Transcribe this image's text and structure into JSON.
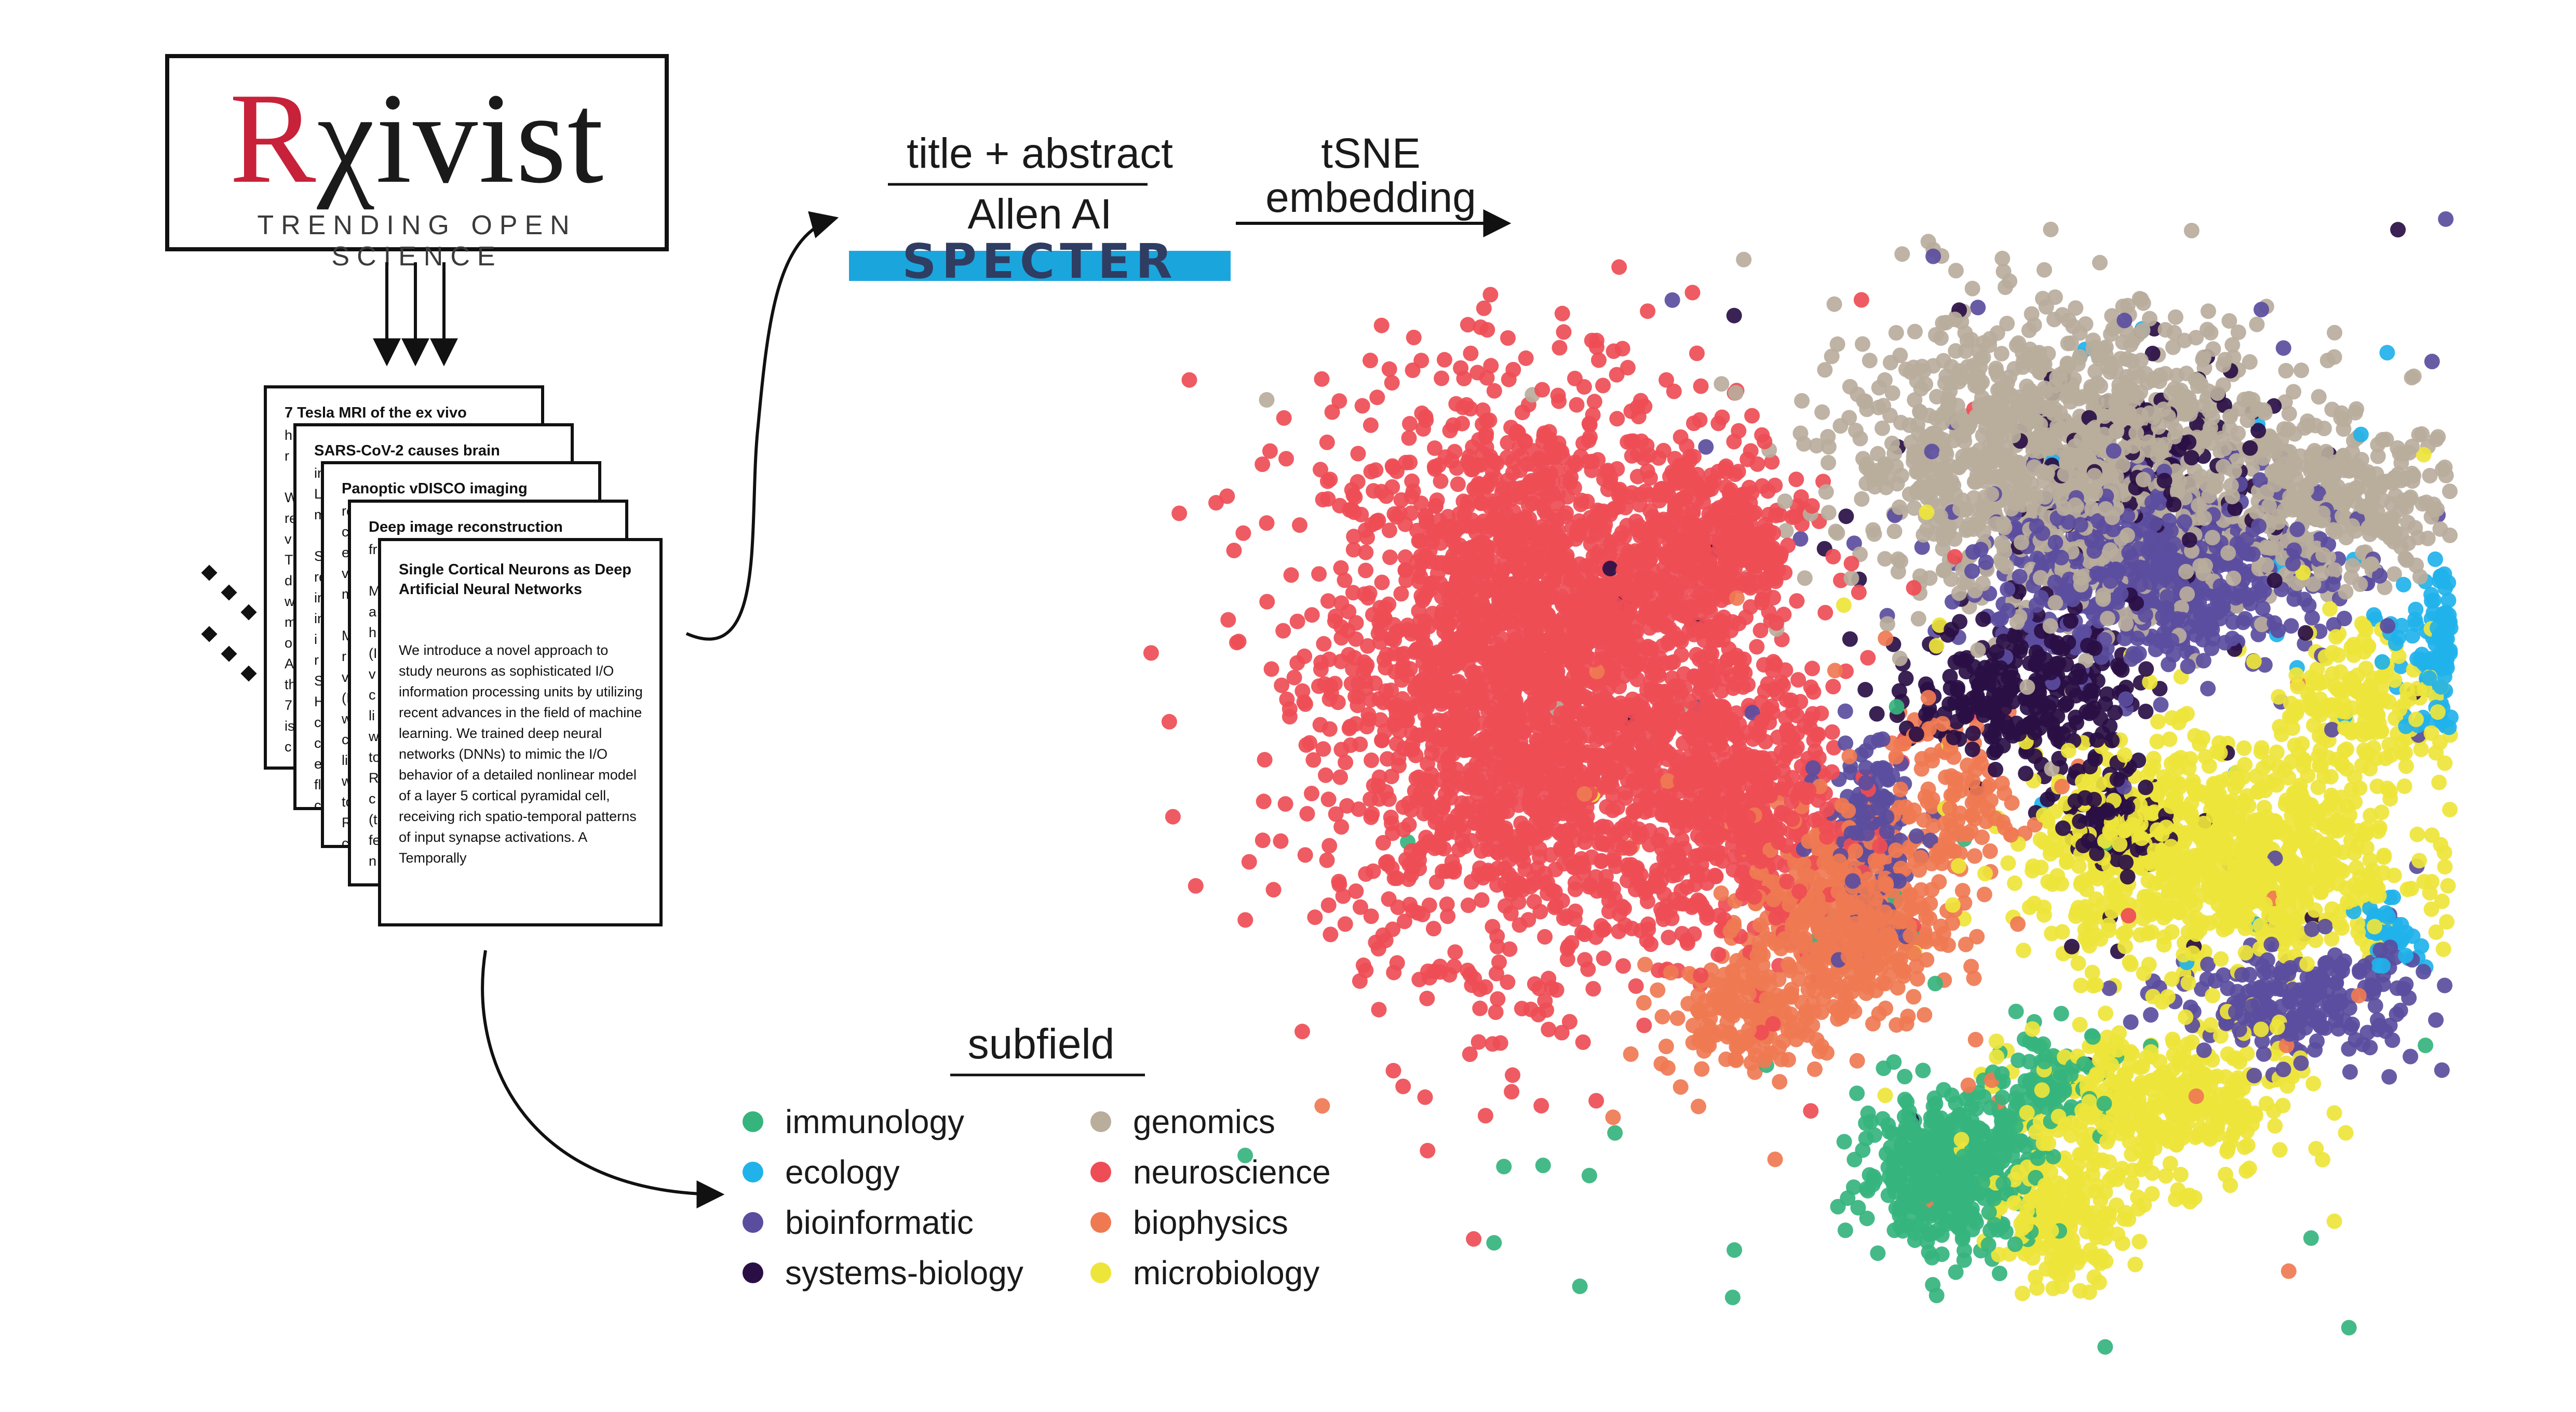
{
  "logo": {
    "wordmark_prefix": "R",
    "wordmark_rest": "χivist",
    "tagline": "TRENDING OPEN SCIENCE"
  },
  "papers": [
    {
      "title": "7 Tesla MRI of the ex vivo",
      "fragments": "h\nr\n\nW\nre\nv\nT\nd\nw\nm\no\nA\nth\n7\nis\nc"
    },
    {
      "title": "SARS-CoV-2 causes brain",
      "fragments": "in\nL\nm\n\nS\nre\nin\nin\ni\nr\nS\nH\nc\nc\ne\nfl\nc"
    },
    {
      "title": "Panoptic vDISCO imaging",
      "fragments": "re\nc\ne\nv\nm\n\nM\nr\nv\n(I\nw\nc\nli\nw\nto\nR\nc\n(t\nfe\nn"
    },
    {
      "title": "Deep image reconstruction",
      "fragments": "fr\n\nM\na\nh\n(I\nv\nc\nli\nw\nto\nR\nc\n(t\nfe\nn"
    },
    {
      "title": "Single Cortical Neurons as Deep Artificial Neural Networks",
      "abstract": "We introduce a novel approach to study neurons as sophisticated I/O information processing units by utilizing recent advances in the field of machine learning. We trained deep neural networks (DNNs) to mimic the I/O behavior of a detailed nonlinear model of a layer 5 cortical pyramidal cell, receiving rich spatio-temporal patterns of input synapse activations. A Temporally"
    }
  ],
  "pipeline": {
    "input_label": "title + abstract",
    "model_org": "Allen AI",
    "model_name": "SPECTER",
    "embedding_label_line1": "tSNE",
    "embedding_label_line2": "embedding"
  },
  "legend": {
    "title": "subfield",
    "items": [
      {
        "label": "immunology",
        "color": "#35b47e"
      },
      {
        "label": "ecology",
        "color": "#21b2ea"
      },
      {
        "label": "bioinformatic",
        "color": "#5b4d9e"
      },
      {
        "label": "systems-biology",
        "color": "#2a0f45"
      },
      {
        "label": "genomics",
        "color": "#b9ad9c"
      },
      {
        "label": "neuroscience",
        "color": "#ee4d55"
      },
      {
        "label": "biophysics",
        "color": "#ef7a52"
      },
      {
        "label": "microbiology",
        "color": "#eee53b"
      }
    ]
  },
  "chart_data": {
    "type": "scatter",
    "title": "",
    "xlabel": "",
    "ylabel": "",
    "grid": false,
    "legend_placement": "bottom-left",
    "series": [
      {
        "name": "neuroscience",
        "color": "#ee4d55",
        "clusters": [
          [
            -3.2,
            0.6,
            1.3,
            1.8,
            2600
          ],
          [
            -1.6,
            -0.4,
            0.7,
            0.9,
            500
          ],
          [
            -1.8,
            1.6,
            0.6,
            0.6,
            350
          ]
        ]
      },
      {
        "name": "genomics",
        "color": "#b9ad9c",
        "clusters": [
          [
            0.9,
            2.3,
            1.4,
            0.9,
            1200
          ],
          [
            3.0,
            1.9,
            0.8,
            0.5,
            350
          ]
        ]
      },
      {
        "name": "bioinformatic",
        "color": "#5b4d9e",
        "clusters": [
          [
            1.6,
            1.4,
            1.1,
            0.6,
            650
          ],
          [
            2.7,
            -1.9,
            0.8,
            0.4,
            220
          ],
          [
            -0.6,
            -0.6,
            0.3,
            0.6,
            140
          ]
        ]
      },
      {
        "name": "systems-biology",
        "color": "#2a0f45",
        "clusters": [
          [
            0.6,
            0.5,
            0.7,
            0.5,
            260
          ],
          [
            1.3,
            -0.5,
            0.35,
            0.35,
            110
          ],
          [
            1.6,
            2.2,
            0.8,
            0.6,
            110
          ]
        ]
      },
      {
        "name": "biophysics",
        "color": "#ef7a52",
        "clusters": [
          [
            -0.8,
            -1.3,
            0.6,
            0.7,
            500
          ],
          [
            -1.6,
            -2.0,
            0.5,
            0.4,
            150
          ],
          [
            0.0,
            -0.4,
            0.4,
            0.6,
            120
          ]
        ]
      },
      {
        "name": "microbiology",
        "color": "#eee53b",
        "clusters": [
          [
            2.1,
            -0.8,
            1.2,
            0.7,
            900
          ],
          [
            1.6,
            -2.7,
            0.9,
            0.5,
            400
          ],
          [
            0.9,
            -3.6,
            0.4,
            0.4,
            200
          ],
          [
            3.2,
            0.4,
            0.5,
            0.5,
            180
          ]
        ]
      },
      {
        "name": "immunology",
        "color": "#35b47e",
        "clusters": [
          [
            0.0,
            -3.2,
            0.55,
            0.45,
            450
          ],
          [
            0.8,
            -2.5,
            0.4,
            0.3,
            90
          ]
        ]
      },
      {
        "name": "ecology",
        "color": "#21b2ea",
        "clusters": [
          [
            4.1,
            0.8,
            0.45,
            0.5,
            420
          ],
          [
            3.4,
            -1.4,
            0.2,
            0.2,
            40
          ]
        ]
      }
    ],
    "cluster_format": "[center_x, center_y, spread_x, spread_y, point_count]"
  }
}
